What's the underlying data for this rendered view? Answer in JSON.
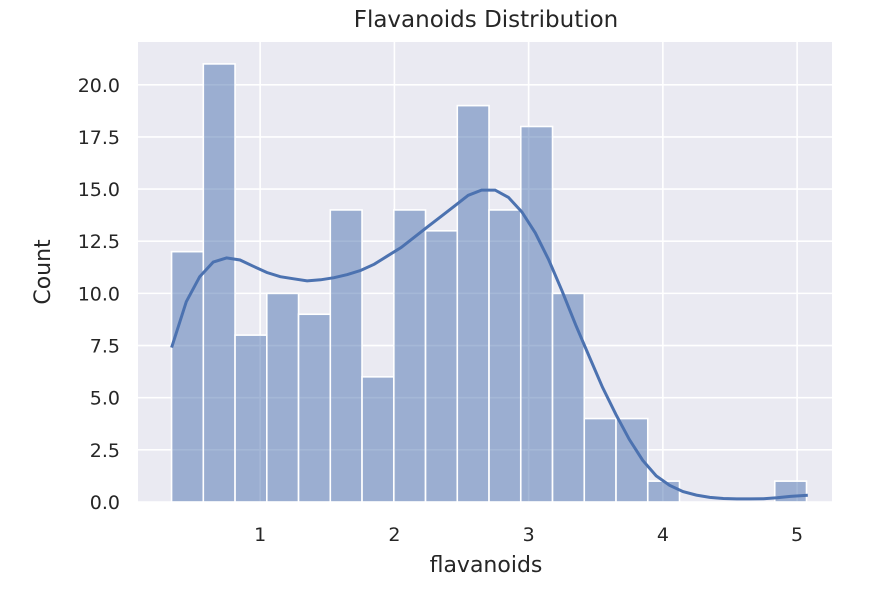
{
  "chart_data": {
    "type": "bar",
    "title": "Flavanoids Distribution",
    "xlabel": "flavanoids",
    "ylabel": "Count",
    "xlim": [
      0.09,
      5.26
    ],
    "ylim": [
      0,
      22.05
    ],
    "xticks": [
      1,
      2,
      3,
      4,
      5
    ],
    "yticks": [
      0.0,
      2.5,
      5.0,
      7.5,
      10.0,
      12.5,
      15.0,
      17.5,
      20.0,
      22.5
    ],
    "ytick_labels": [
      "0.0",
      "2.5",
      "5.0",
      "7.5",
      "10.0",
      "12.5",
      "15.0",
      "17.5",
      "20.0"
    ],
    "grid": true,
    "bins": {
      "start": 0.34,
      "width": 0.2365,
      "counts": [
        12,
        21,
        8,
        10,
        9,
        14,
        6,
        14,
        13,
        19,
        14,
        18,
        10,
        4,
        4,
        1,
        0,
        0,
        0,
        1
      ]
    },
    "kde": {
      "x": [
        0.34,
        0.45,
        0.55,
        0.65,
        0.75,
        0.85,
        0.95,
        1.05,
        1.15,
        1.25,
        1.35,
        1.45,
        1.55,
        1.65,
        1.75,
        1.85,
        1.95,
        2.05,
        2.15,
        2.25,
        2.35,
        2.45,
        2.55,
        2.65,
        2.75,
        2.85,
        2.95,
        3.05,
        3.15,
        3.25,
        3.35,
        3.45,
        3.55,
        3.65,
        3.75,
        3.85,
        3.95,
        4.05,
        4.15,
        4.25,
        4.35,
        4.45,
        4.55,
        4.65,
        4.75,
        4.85,
        4.95,
        5.08
      ],
      "y": [
        7.4,
        9.6,
        10.8,
        11.5,
        11.7,
        11.6,
        11.3,
        11.0,
        10.8,
        10.7,
        10.6,
        10.65,
        10.75,
        10.9,
        11.1,
        11.4,
        11.8,
        12.2,
        12.7,
        13.2,
        13.7,
        14.2,
        14.7,
        14.95,
        14.95,
        14.6,
        13.9,
        12.9,
        11.6,
        10.1,
        8.5,
        7.0,
        5.5,
        4.2,
        3.0,
        2.0,
        1.25,
        0.8,
        0.5,
        0.33,
        0.22,
        0.17,
        0.15,
        0.15,
        0.16,
        0.2,
        0.27,
        0.32
      ]
    }
  }
}
